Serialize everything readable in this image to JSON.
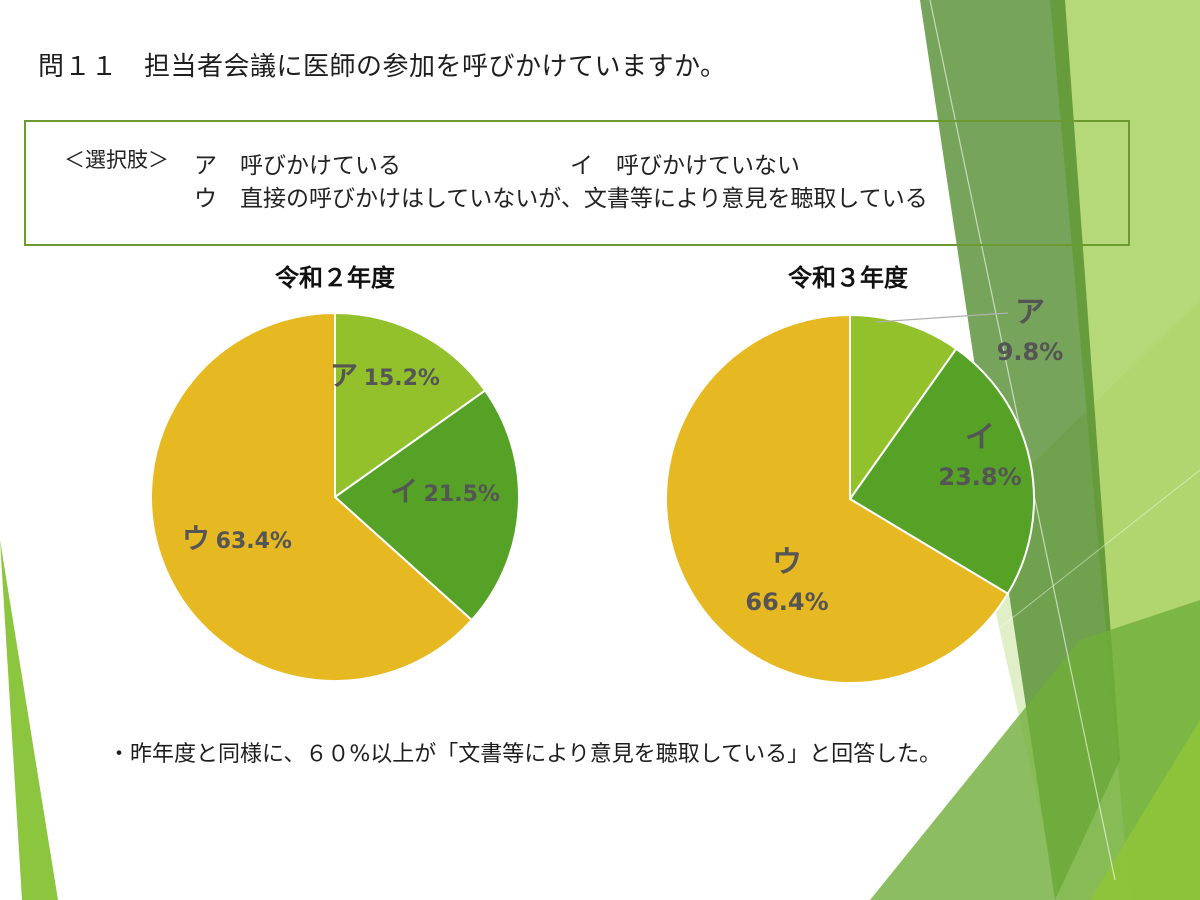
{
  "title": "問１１　担当者会議に医師の参加を呼びかけていますか。",
  "choices": {
    "tag": "＜選択肢＞",
    "a": "ア　呼びかけている",
    "i": "イ　呼びかけていない",
    "u": "ウ　直接の呼びかけはしていないが、文書等により意見を聴取している"
  },
  "summary": "・昨年度と同様に、６０%以上が「文書等により意見を聴取している」と回答した。",
  "colors": {
    "a": "#92c12b",
    "i": "#56a227",
    "u": "#e6b822",
    "frame": "#6c9a2e",
    "label": "#555555"
  },
  "chart_data": [
    {
      "type": "pie",
      "title": "令和２年度",
      "slices": [
        {
          "key": "ア",
          "value": 15.2,
          "label": "15.2%"
        },
        {
          "key": "イ",
          "value": 21.5,
          "label": "21.5%"
        },
        {
          "key": "ウ",
          "value": 63.4,
          "label": "63.4%"
        }
      ]
    },
    {
      "type": "pie",
      "title": "令和３年度",
      "slices": [
        {
          "key": "ア",
          "value": 9.8,
          "label": "9.8%"
        },
        {
          "key": "イ",
          "value": 23.8,
          "label": "23.8%"
        },
        {
          "key": "ウ",
          "value": 66.4,
          "label": "66.4%"
        }
      ]
    }
  ]
}
